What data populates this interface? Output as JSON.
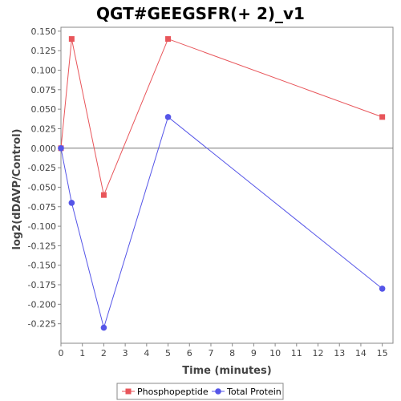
{
  "chart_data": {
    "type": "line",
    "title": "QGT#GEEGSFR(+ 2)_v1",
    "xlabel": "Time (minutes)",
    "ylabel": "log2(dDAVP/Control)",
    "xlim": [
      0,
      15.5
    ],
    "ylim": [
      -0.25,
      0.155
    ],
    "xticks": [
      0,
      1,
      2,
      3,
      4,
      5,
      6,
      7,
      8,
      9,
      10,
      11,
      12,
      13,
      14,
      15
    ],
    "yticks": [
      -0.225,
      -0.2,
      -0.175,
      -0.15,
      -0.125,
      -0.1,
      -0.075,
      -0.05,
      -0.025,
      0.0,
      0.025,
      0.05,
      0.075,
      0.1,
      0.125,
      0.15
    ],
    "ytick_labels": [
      "-0.225",
      "-0.200",
      "-0.175",
      "-0.150",
      "-0.125",
      "-0.100",
      "-0.075",
      "-0.050",
      "-0.025",
      "0.000",
      "0.025",
      "0.050",
      "0.075",
      "0.100",
      "0.125",
      "0.150"
    ],
    "zero_line": true,
    "grid": false,
    "legend_position": "bottom",
    "series": [
      {
        "name": "Phosphopeptide",
        "color": "#e8555a",
        "marker": "square",
        "x": [
          0,
          0.5,
          2,
          5,
          15
        ],
        "y": [
          0.0,
          0.14,
          -0.06,
          0.14,
          0.04
        ]
      },
      {
        "name": "Total Protein",
        "color": "#5555e8",
        "marker": "circle",
        "x": [
          0,
          0.5,
          2,
          5,
          15
        ],
        "y": [
          0.0,
          -0.07,
          -0.23,
          0.04,
          -0.18
        ]
      }
    ]
  }
}
